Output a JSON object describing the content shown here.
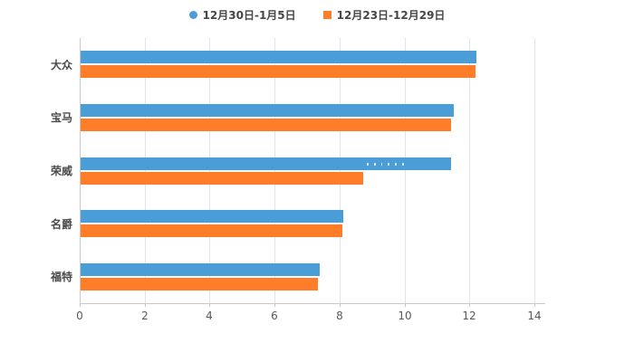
{
  "legend": {
    "items": [
      {
        "label": "12月30日-1月5日",
        "color": "#4a9dd6",
        "marker": "circle"
      },
      {
        "label": "12月23日-12月29日",
        "color": "#ff7d29",
        "marker": "square"
      }
    ]
  },
  "chart_data": {
    "type": "bar",
    "orientation": "horizontal",
    "title": "",
    "xlabel": "",
    "ylabel": "",
    "categories": [
      "大众",
      "宝马",
      "荣威",
      "名爵",
      "福特"
    ],
    "series": [
      {
        "name": "12月30日-1月5日",
        "color": "#4a9dd6",
        "values": [
          12.2,
          11.5,
          11.4,
          8.1,
          7.35
        ]
      },
      {
        "name": "12月23日-12月29日",
        "color": "#ff7d29",
        "values": [
          12.15,
          11.4,
          8.7,
          8.05,
          7.3
        ]
      }
    ],
    "xlim": [
      0,
      14
    ],
    "xticks": [
      0,
      2,
      4,
      6,
      8,
      10,
      12,
      14
    ],
    "grid": true,
    "legend_position": "top",
    "annotations": [
      {
        "type": "dots",
        "category_index": 2,
        "series_index": 0,
        "from": 8.85,
        "to": 10.0,
        "color": "#ffffff"
      }
    ]
  }
}
